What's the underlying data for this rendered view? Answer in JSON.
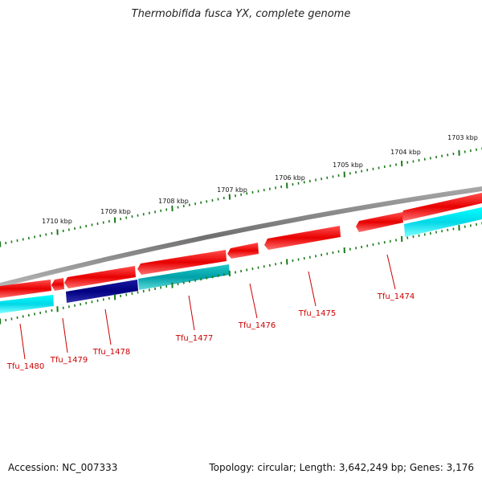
{
  "title": "Thermobifida fusca YX, complete genome",
  "footer": {
    "accession": "Accession: NC_007333",
    "summary": "Topology: circular; Length: 3,642,249 bp; Genes: 3,176"
  },
  "ruler": {
    "labels": [
      "1703 kbp",
      "1704 kbp",
      "1705 kbp",
      "1706 kbp",
      "1707 kbp",
      "1708 kbp",
      "1709 kbp",
      "1710 kbp"
    ]
  },
  "genes": {
    "labels": [
      "Tfu_1474",
      "Tfu_1475",
      "Tfu_1476",
      "Tfu_1477",
      "Tfu_1478",
      "Tfu_1479",
      "Tfu_1480"
    ]
  },
  "colors": {
    "backbone": "#808080",
    "forward_gene": "#ee0000",
    "reverse_cds": "#00e0f0",
    "dark_cds": "#000080",
    "ruler_tick": "#1a7a1a",
    "label_red": "#cc0000"
  }
}
